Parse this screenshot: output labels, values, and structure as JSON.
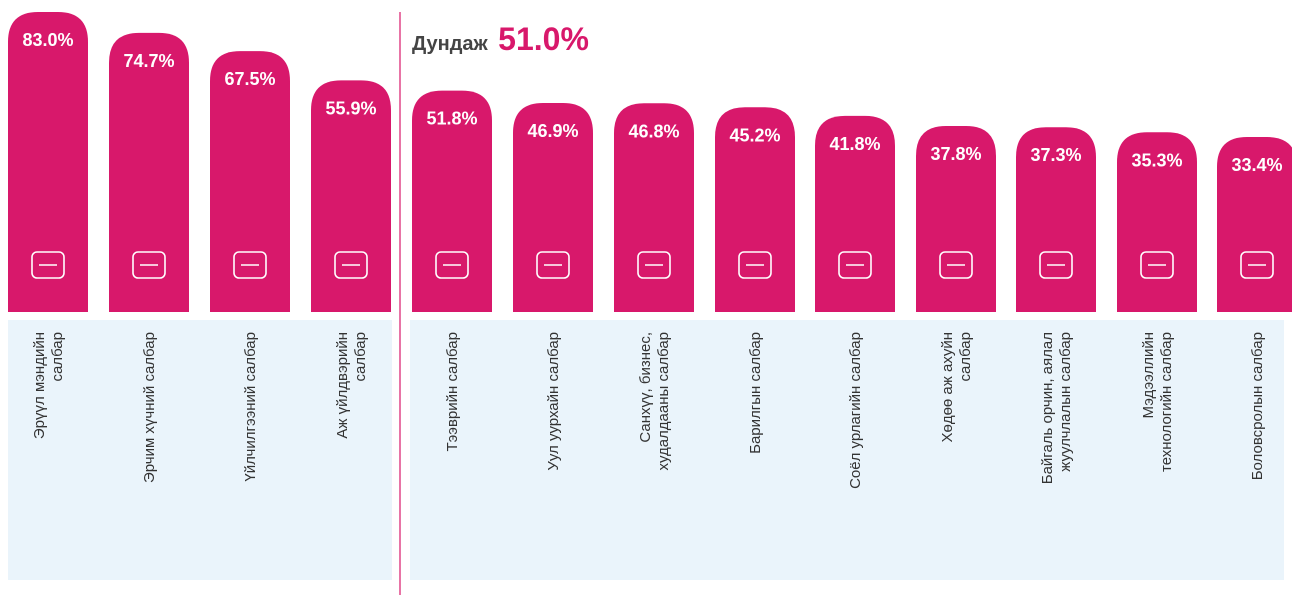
{
  "chart_data": {
    "type": "bar",
    "average": {
      "label": "Дундаж",
      "value": 51.0,
      "value_label": "51.0%"
    },
    "categories": [
      [
        "Эрүүл мэндийн",
        "салбар"
      ],
      [
        "Эрчим хүчний салбар"
      ],
      [
        "Үйлчилгээний салбар"
      ],
      [
        "Аж үйлдвэрийн",
        "салбар"
      ],
      [
        "Тээврийн салбар"
      ],
      [
        "Уул уурхайн салбар"
      ],
      [
        "Санхүү, бизнес,",
        "худалдааны салбар"
      ],
      [
        "Барилгын салбар"
      ],
      [
        "Соёл урлагийн салбар"
      ],
      [
        "Хөдөө аж ахуйн",
        "салбар"
      ],
      [
        "Байгаль орчин, аялал",
        "жуулчлалын салбар"
      ],
      [
        "Мэдээллийн",
        "технологийн салбар"
      ],
      [
        "Боловсролын салбар"
      ]
    ],
    "values": [
      83.0,
      74.7,
      67.5,
      55.9,
      51.8,
      46.9,
      46.8,
      45.2,
      41.8,
      37.8,
      37.3,
      35.3,
      33.4
    ],
    "value_labels": [
      "83.0%",
      "74.7%",
      "67.5%",
      "55.9%",
      "51.8%",
      "46.9%",
      "46.8%",
      "45.2%",
      "41.8%",
      "37.8%",
      "37.3%",
      "35.3%",
      "33.4%"
    ],
    "color": "#d8186b",
    "ylim": [
      -36,
      83
    ]
  }
}
